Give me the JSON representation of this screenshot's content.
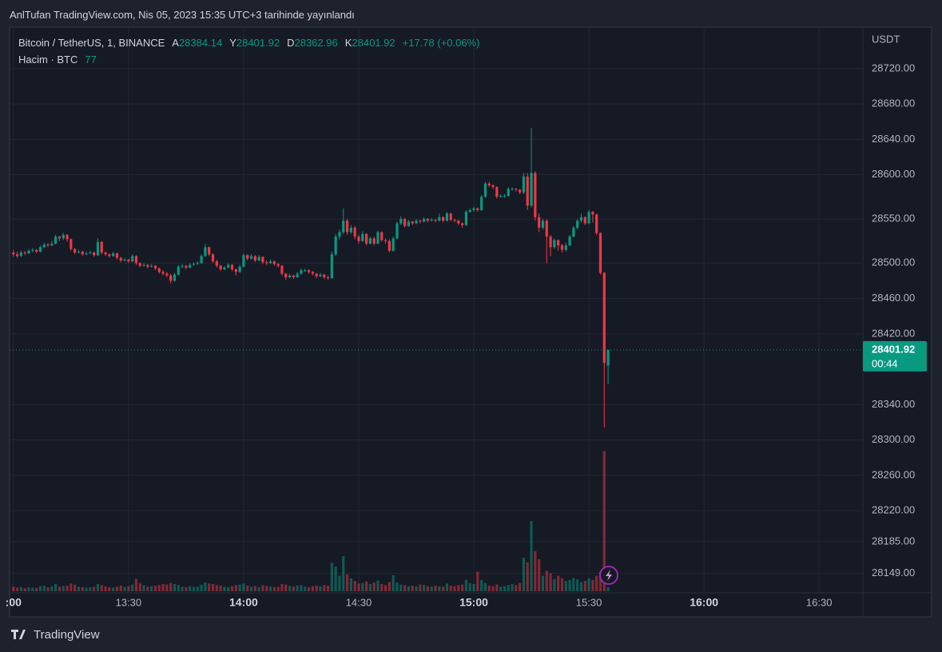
{
  "chart_data": {
    "type": "candlestick",
    "published": "AnlTufan TradingView.com, Nis 05, 2023 15:35 UTC+3 tarihinde yayınlandı",
    "symbol": "Bitcoin / TetherUS, 1, BINANCE",
    "open_label": "A",
    "high_label": "Y",
    "low_label": "D",
    "close_label": "K",
    "change": "+17.78 (+0.06%)",
    "volume_label": "Hacim · BTC",
    "currency": "USDT",
    "countdown": "00:44",
    "brand": "TradingView",
    "up_color": "#089981",
    "down_color": "#f23645",
    "grid": true,
    "x": [
      "13:00",
      "13:01",
      "13:02",
      "13:03",
      "13:04",
      "13:05",
      "13:06",
      "13:07",
      "13:08",
      "13:09",
      "13:10",
      "13:11",
      "13:12",
      "13:13",
      "13:14",
      "13:15",
      "13:16",
      "13:17",
      "13:18",
      "13:19",
      "13:20",
      "13:21",
      "13:22",
      "13:23",
      "13:24",
      "13:25",
      "13:26",
      "13:27",
      "13:28",
      "13:29",
      "13:30",
      "13:31",
      "13:32",
      "13:33",
      "13:34",
      "13:35",
      "13:36",
      "13:37",
      "13:38",
      "13:39",
      "13:40",
      "13:41",
      "13:42",
      "13:43",
      "13:44",
      "13:45",
      "13:46",
      "13:47",
      "13:48",
      "13:49",
      "13:50",
      "13:51",
      "13:52",
      "13:53",
      "13:54",
      "13:55",
      "13:56",
      "13:57",
      "13:58",
      "13:59",
      "14:00",
      "14:01",
      "14:02",
      "14:03",
      "14:04",
      "14:05",
      "14:06",
      "14:07",
      "14:08",
      "14:09",
      "14:10",
      "14:11",
      "14:12",
      "14:13",
      "14:14",
      "14:15",
      "14:16",
      "14:17",
      "14:18",
      "14:19",
      "14:20",
      "14:21",
      "14:22",
      "14:23",
      "14:24",
      "14:25",
      "14:26",
      "14:27",
      "14:28",
      "14:29",
      "14:30",
      "14:31",
      "14:32",
      "14:33",
      "14:34",
      "14:35",
      "14:36",
      "14:37",
      "14:38",
      "14:39",
      "14:40",
      "14:41",
      "14:42",
      "14:43",
      "14:44",
      "14:45",
      "14:46",
      "14:47",
      "14:48",
      "14:49",
      "14:50",
      "14:51",
      "14:52",
      "14:53",
      "14:54",
      "14:55",
      "14:56",
      "14:57",
      "14:58",
      "14:59",
      "15:00",
      "15:01",
      "15:02",
      "15:03",
      "15:04",
      "15:05",
      "15:06",
      "15:07",
      "15:08",
      "15:09",
      "15:10",
      "15:11",
      "15:12",
      "15:13",
      "15:14",
      "15:15",
      "15:16",
      "15:17",
      "15:18",
      "15:19",
      "15:20",
      "15:21",
      "15:22",
      "15:23",
      "15:24",
      "15:25",
      "15:26",
      "15:27",
      "15:28",
      "15:29",
      "15:30",
      "15:31",
      "15:32",
      "15:33",
      "15:34",
      "15:35"
    ],
    "ohlc": [
      [
        28512,
        28515,
        28507,
        28510
      ],
      [
        28510,
        28513,
        28506,
        28508
      ],
      [
        28508,
        28514,
        28507,
        28512
      ],
      [
        28512,
        28514,
        28509,
        28511
      ],
      [
        28511,
        28516,
        28510,
        28514
      ],
      [
        28514,
        28517,
        28512,
        28515
      ],
      [
        28515,
        28516,
        28511,
        28513
      ],
      [
        28513,
        28520,
        28512,
        28518
      ],
      [
        28518,
        28523,
        28517,
        28521
      ],
      [
        28521,
        28523,
        28518,
        28520
      ],
      [
        28520,
        28525,
        28519,
        28522
      ],
      [
        28522,
        28532,
        28521,
        28530
      ],
      [
        28530,
        28531,
        28525,
        28528
      ],
      [
        28528,
        28534,
        28526,
        28532
      ],
      [
        28532,
        28533,
        28524,
        28527
      ],
      [
        28527,
        28528,
        28514,
        28516
      ],
      [
        28516,
        28517,
        28510,
        28512
      ],
      [
        28512,
        28515,
        28511,
        28513
      ],
      [
        28513,
        28514,
        28508,
        28510
      ],
      [
        28510,
        28513,
        28509,
        28511
      ],
      [
        28511,
        28514,
        28510,
        28512
      ],
      [
        28512,
        28513,
        28507,
        28509
      ],
      [
        28509,
        28528,
        28508,
        28524
      ],
      [
        28524,
        28525,
        28510,
        28512
      ],
      [
        28512,
        28513,
        28508,
        28510
      ],
      [
        28510,
        28511,
        28506,
        28508
      ],
      [
        28508,
        28513,
        28507,
        28511
      ],
      [
        28511,
        28512,
        28504,
        28506
      ],
      [
        28506,
        28507,
        28501,
        28503
      ],
      [
        28503,
        28506,
        28502,
        28504
      ],
      [
        28504,
        28505,
        28500,
        28502
      ],
      [
        28502,
        28510,
        28501,
        28508
      ],
      [
        28508,
        28509,
        28498,
        28500
      ],
      [
        28500,
        28501,
        28495,
        28497
      ],
      [
        28497,
        28500,
        28496,
        28498
      ],
      [
        28498,
        28499,
        28494,
        28496
      ],
      [
        28496,
        28499,
        28495,
        28497
      ],
      [
        28497,
        28498,
        28492,
        28494
      ],
      [
        28494,
        28495,
        28488,
        28490
      ],
      [
        28490,
        28492,
        28486,
        28488
      ],
      [
        28488,
        28490,
        28484,
        28486
      ],
      [
        28486,
        28488,
        28477,
        28480
      ],
      [
        28480,
        28489,
        28479,
        28487
      ],
      [
        28487,
        28498,
        28486,
        28496
      ],
      [
        28496,
        28499,
        28494,
        28497
      ],
      [
        28497,
        28498,
        28493,
        28495
      ],
      [
        28495,
        28500,
        28494,
        28498
      ],
      [
        28498,
        28501,
        28497,
        28499
      ],
      [
        28499,
        28502,
        28498,
        28500
      ],
      [
        28500,
        28510,
        28499,
        28508
      ],
      [
        28508,
        28522,
        28507,
        28518
      ],
      [
        28518,
        28519,
        28508,
        28510
      ],
      [
        28510,
        28511,
        28500,
        28502
      ],
      [
        28502,
        28504,
        28495,
        28497
      ],
      [
        28497,
        28498,
        28491,
        28493
      ],
      [
        28493,
        28497,
        28492,
        28495
      ],
      [
        28495,
        28500,
        28494,
        28498
      ],
      [
        28498,
        28499,
        28491,
        28493
      ],
      [
        28493,
        28494,
        28486,
        28490
      ],
      [
        28490,
        28498,
        28489,
        28496
      ],
      [
        28496,
        28511,
        28495,
        28509
      ],
      [
        28509,
        28510,
        28503,
        28505
      ],
      [
        28505,
        28510,
        28504,
        28508
      ],
      [
        28508,
        28509,
        28501,
        28503
      ],
      [
        28503,
        28509,
        28502,
        28507
      ],
      [
        28507,
        28508,
        28499,
        28501
      ],
      [
        28501,
        28503,
        28498,
        28500
      ],
      [
        28500,
        28504,
        28499,
        28502
      ],
      [
        28502,
        28503,
        28497,
        28499
      ],
      [
        28499,
        28500,
        28495,
        28497
      ],
      [
        28497,
        28498,
        28486,
        28488
      ],
      [
        28488,
        28489,
        28481,
        28484
      ],
      [
        28484,
        28488,
        28483,
        28486
      ],
      [
        28486,
        28487,
        28482,
        28484
      ],
      [
        28484,
        28490,
        28483,
        28488
      ],
      [
        28488,
        28494,
        28487,
        28492
      ],
      [
        28492,
        28494,
        28490,
        28492
      ],
      [
        28492,
        28493,
        28488,
        28490
      ],
      [
        28490,
        28491,
        28486,
        28488
      ],
      [
        28488,
        28489,
        28483,
        28485
      ],
      [
        28485,
        28489,
        28484,
        28487
      ],
      [
        28487,
        28488,
        28482,
        28484
      ],
      [
        28484,
        28486,
        28481,
        28483
      ],
      [
        28483,
        28513,
        28482,
        28510
      ],
      [
        28510,
        28533,
        28508,
        28530
      ],
      [
        28530,
        28538,
        28527,
        28535
      ],
      [
        28535,
        28562,
        28533,
        28548
      ],
      [
        28548,
        28550,
        28532,
        28535
      ],
      [
        28535,
        28543,
        28533,
        28540
      ],
      [
        28540,
        28542,
        28527,
        28530
      ],
      [
        28530,
        28532,
        28522,
        28525
      ],
      [
        28525,
        28536,
        28524,
        28533
      ],
      [
        28533,
        28534,
        28520,
        28522
      ],
      [
        28522,
        28530,
        28521,
        28528
      ],
      [
        28528,
        28530,
        28520,
        28522
      ],
      [
        28522,
        28537,
        28521,
        28535
      ],
      [
        28535,
        28536,
        28524,
        28526
      ],
      [
        28526,
        28528,
        28522,
        28525
      ],
      [
        28525,
        28527,
        28512,
        28514
      ],
      [
        28514,
        28530,
        28513,
        28528
      ],
      [
        28528,
        28547,
        28527,
        28545
      ],
      [
        28545,
        28553,
        28543,
        28550
      ],
      [
        28550,
        28551,
        28540,
        28542
      ],
      [
        28542,
        28549,
        28541,
        28547
      ],
      [
        28547,
        28548,
        28543,
        28545
      ],
      [
        28545,
        28550,
        28544,
        28548
      ],
      [
        28548,
        28549,
        28545,
        28547
      ],
      [
        28547,
        28552,
        28546,
        28550
      ],
      [
        28550,
        28551,
        28546,
        28548
      ],
      [
        28548,
        28551,
        28547,
        28549
      ],
      [
        28549,
        28550,
        28546,
        28548
      ],
      [
        28548,
        28556,
        28547,
        28552
      ],
      [
        28552,
        28553,
        28546,
        28548
      ],
      [
        28548,
        28558,
        28547,
        28556
      ],
      [
        28556,
        28557,
        28547,
        28549
      ],
      [
        28549,
        28550,
        28546,
        28548
      ],
      [
        28548,
        28549,
        28543,
        28545
      ],
      [
        28545,
        28546,
        28540,
        28543
      ],
      [
        28543,
        28560,
        28542,
        28558
      ],
      [
        28558,
        28562,
        28557,
        28560
      ],
      [
        28560,
        28564,
        28558,
        28562
      ],
      [
        28562,
        28563,
        28558,
        28560
      ],
      [
        28560,
        28577,
        28559,
        28575
      ],
      [
        28575,
        28592,
        28574,
        28590
      ],
      [
        28590,
        28592,
        28586,
        28588
      ],
      [
        28588,
        28589,
        28584,
        28586
      ],
      [
        28586,
        28587,
        28573,
        28575
      ],
      [
        28575,
        28578,
        28574,
        28576
      ],
      [
        28576,
        28578,
        28574,
        28576
      ],
      [
        28576,
        28586,
        28575,
        28584
      ],
      [
        28584,
        28586,
        28582,
        28584
      ],
      [
        28584,
        28585,
        28581,
        28583
      ],
      [
        28583,
        28584,
        28578,
        28580
      ],
      [
        28580,
        28602,
        28578,
        28598
      ],
      [
        28598,
        28602,
        28560,
        28565
      ],
      [
        28565,
        28653,
        28563,
        28602
      ],
      [
        28602,
        28604,
        28548,
        28552
      ],
      [
        28552,
        28556,
        28535,
        28540
      ],
      [
        28540,
        28550,
        28538,
        28548
      ],
      [
        28548,
        28550,
        28500,
        28530
      ],
      [
        28530,
        28532,
        28508,
        28518
      ],
      [
        28518,
        28528,
        28516,
        28526
      ],
      [
        28526,
        28527,
        28514,
        28520
      ],
      [
        28520,
        28522,
        28512,
        28515
      ],
      [
        28515,
        28523,
        28513,
        28520
      ],
      [
        28520,
        28532,
        28519,
        28530
      ],
      [
        28530,
        28542,
        28529,
        28540
      ],
      [
        28540,
        28550,
        28538,
        28548
      ],
      [
        28548,
        28556,
        28546,
        28552
      ],
      [
        28552,
        28553,
        28543,
        28545
      ],
      [
        28545,
        28560,
        28544,
        28558
      ],
      [
        28558,
        28559,
        28546,
        28555
      ],
      [
        28555,
        28556,
        28532,
        28534
      ],
      [
        28534,
        28535,
        28487,
        28489
      ],
      [
        28489,
        28490,
        28314,
        28387
      ],
      [
        28384.14,
        28401.92,
        28362.96,
        28401.92
      ]
    ],
    "volume": [
      90,
      70,
      80,
      60,
      75,
      70,
      65,
      100,
      110,
      80,
      95,
      140,
      90,
      100,
      110,
      150,
      130,
      90,
      80,
      70,
      75,
      85,
      140,
      120,
      95,
      80,
      70,
      90,
      110,
      85,
      100,
      130,
      240,
      160,
      120,
      90,
      100,
      110,
      120,
      140,
      130,
      160,
      140,
      120,
      90,
      80,
      100,
      85,
      90,
      130,
      170,
      150,
      140,
      120,
      110,
      90,
      80,
      100,
      120,
      130,
      150,
      110,
      90,
      100,
      80,
      120,
      100,
      90,
      80,
      85,
      140,
      130,
      100,
      90,
      110,
      120,
      90,
      80,
      100,
      110,
      100,
      120,
      110,
      550,
      480,
      300,
      680,
      330,
      250,
      200,
      150,
      160,
      190,
      140,
      170,
      210,
      140,
      120,
      180,
      310,
      170,
      130,
      120,
      100,
      110,
      100,
      130,
      120,
      100,
      90,
      110,
      100,
      90,
      150,
      110,
      100,
      120,
      130,
      220,
      160,
      140,
      380,
      220,
      160,
      110,
      100,
      130,
      90,
      100,
      120,
      140,
      120,
      160,
      650,
      560,
      1360,
      780,
      620,
      300,
      400,
      350,
      240,
      300,
      250,
      200,
      220,
      260,
      230,
      180,
      200,
      250,
      220,
      300,
      380,
      2720,
      77
    ],
    "vlim": [
      0,
      3100
    ],
    "xlim": [
      "12:59",
      "16:41"
    ],
    "xticks": [
      {
        "value": "13:00",
        "label": ":00"
      },
      "13:30",
      "14:00",
      "14:30",
      "15:00",
      "15:30",
      "16:00",
      "16:30"
    ],
    "ylim": [
      28127,
      28766
    ],
    "yticks": [
      {
        "value": 28720,
        "label": "28720.00"
      },
      {
        "value": 28680,
        "label": "28680.00"
      },
      {
        "value": 28640,
        "label": "28640.00"
      },
      {
        "value": 28600,
        "label": "28600.00"
      },
      {
        "value": 28550,
        "label": "28550.00"
      },
      {
        "value": 28500,
        "label": "28500.00"
      },
      {
        "value": 28460,
        "label": "28460.00"
      },
      {
        "value": 28420,
        "label": "28420.00"
      },
      {
        "value": 28340,
        "label": "28340.00"
      },
      {
        "value": 28300,
        "label": "28300.00"
      },
      {
        "value": 28260,
        "label": "28260.00"
      },
      {
        "value": 28220,
        "label": "28220.00"
      },
      {
        "value": 28185,
        "label": "28185.00"
      },
      {
        "value": 28149,
        "label": "28149.00"
      }
    ]
  }
}
